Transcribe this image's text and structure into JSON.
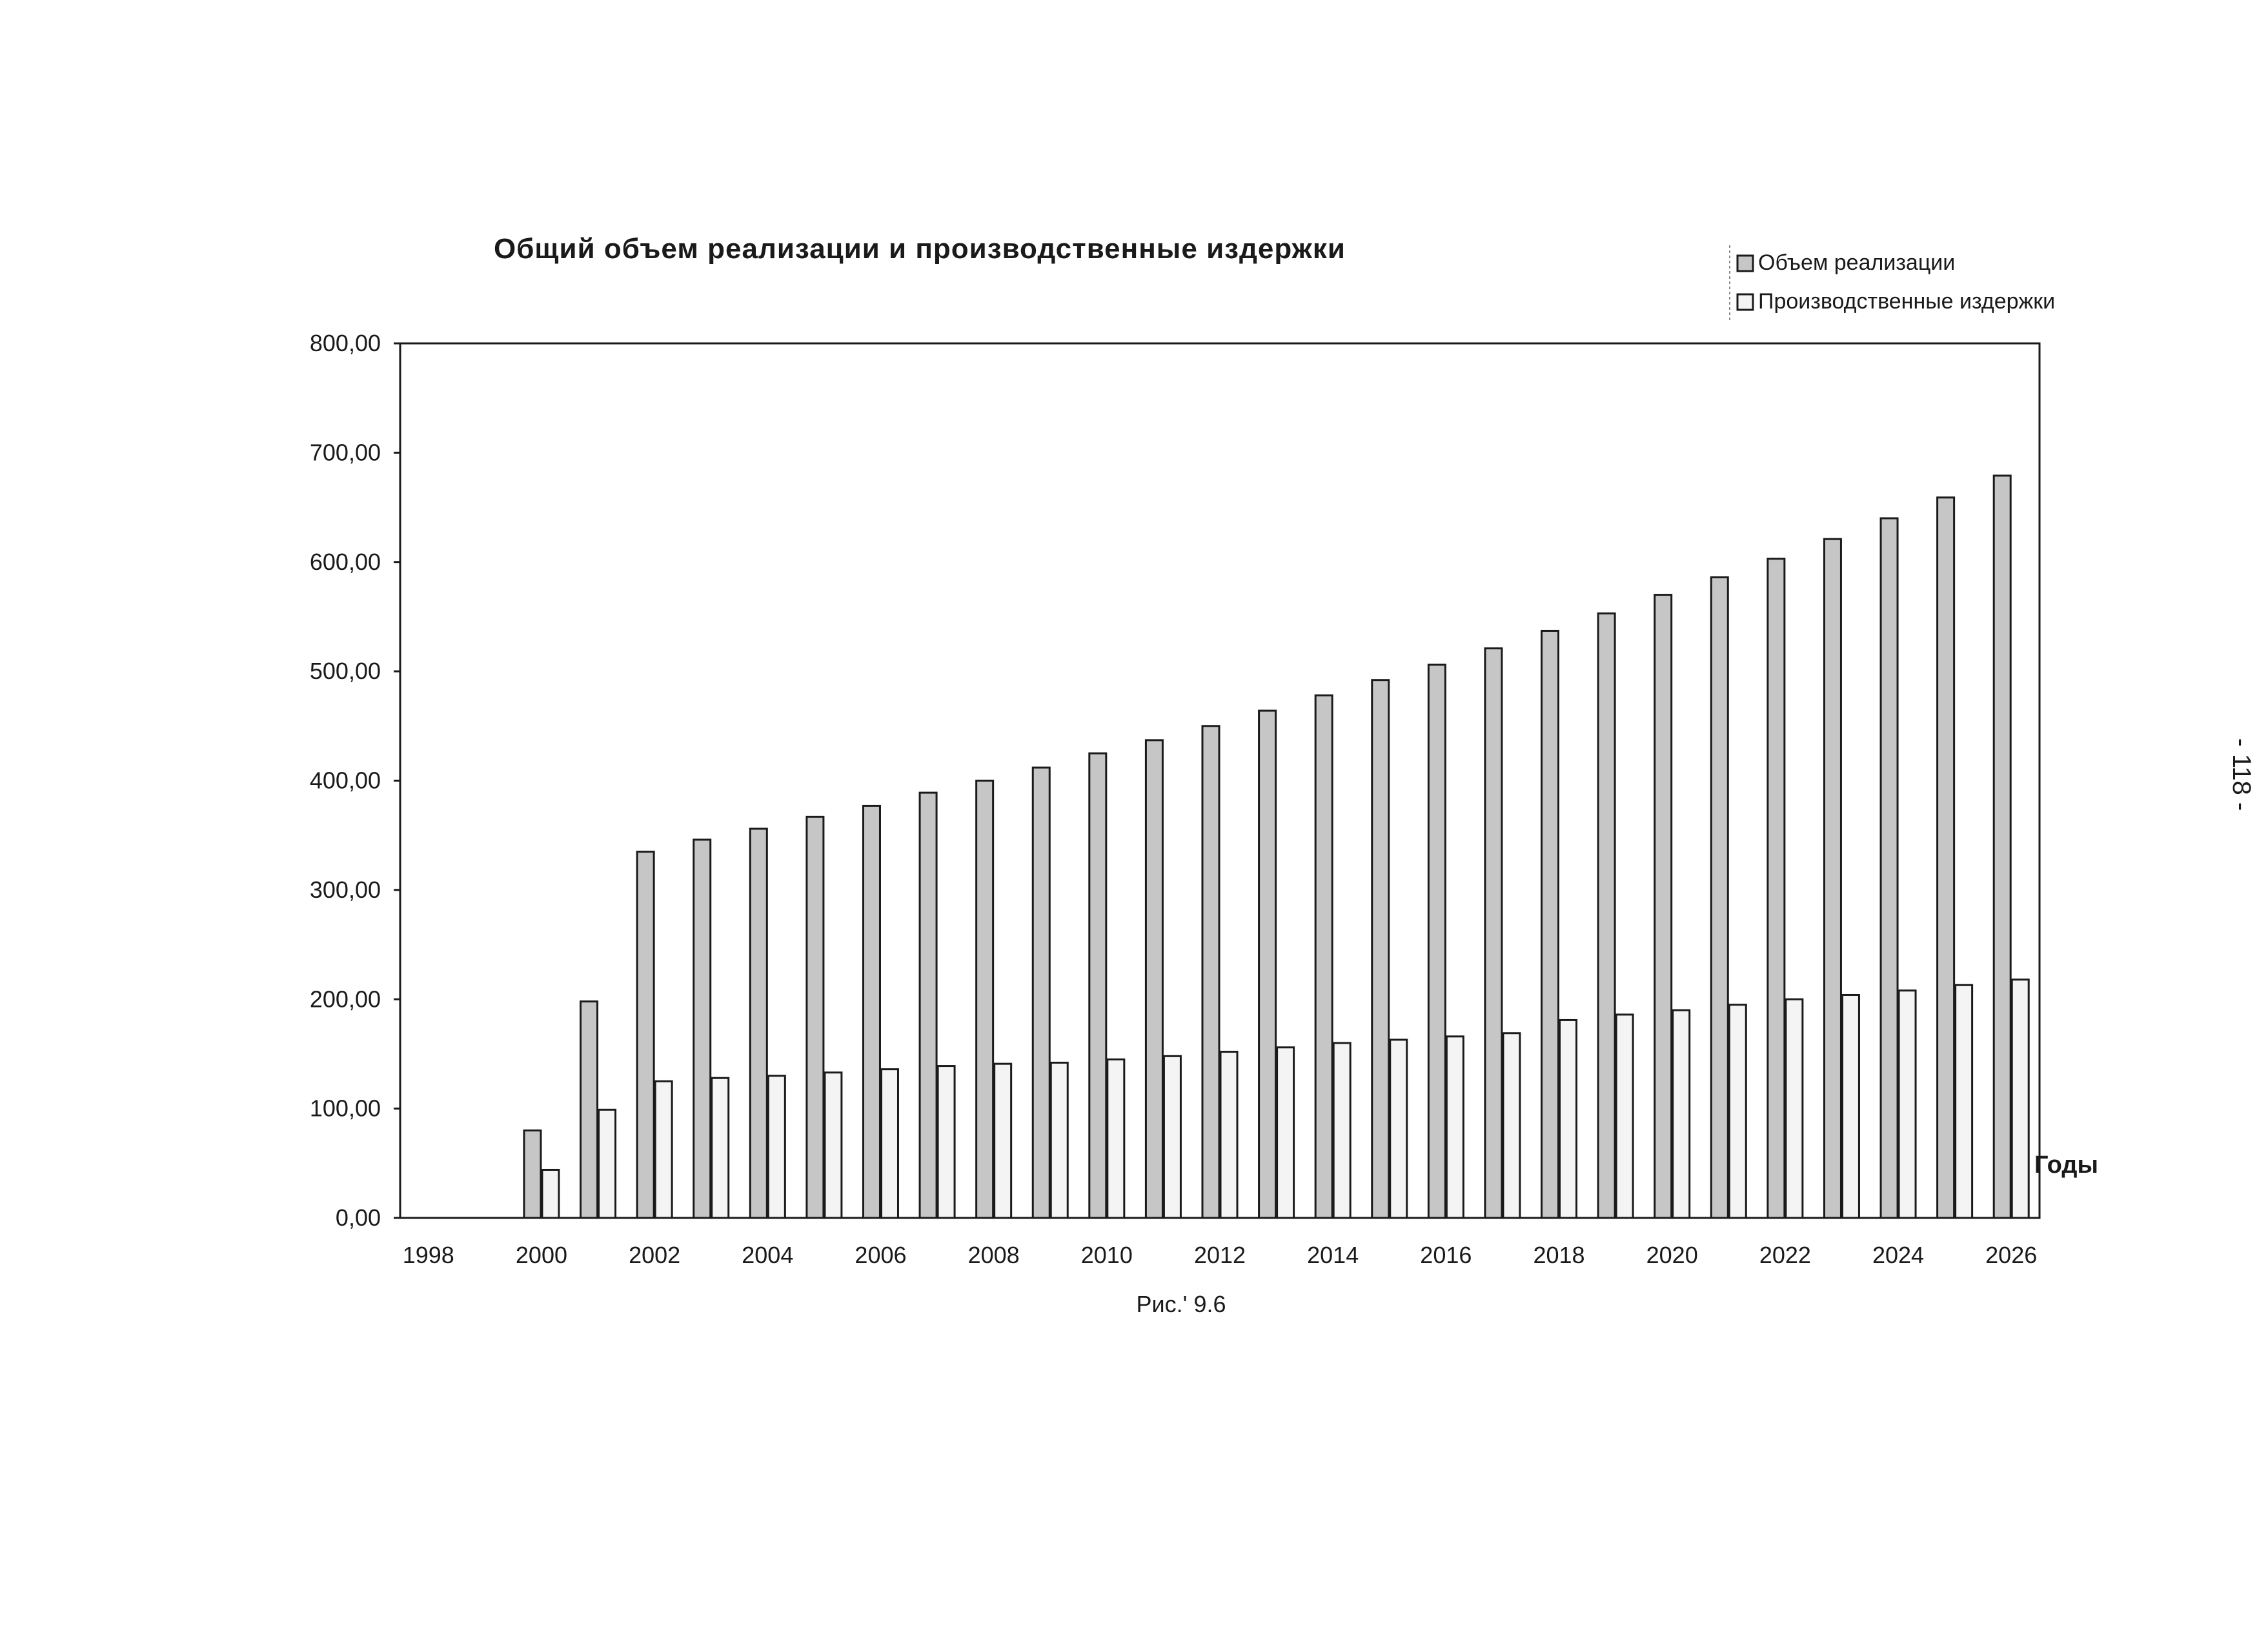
{
  "figure_caption": "Рис.' 9.6",
  "page_number": "- 118 -",
  "colors": {
    "sales_fill": "#c6c6c6",
    "costs_fill": "#f4f4f4",
    "stroke": "#1a1a1a"
  },
  "chart_data": {
    "type": "bar",
    "title": "Общий объем реализации и производственные издержки",
    "xlabel": "Годы",
    "ylabel": "",
    "ylim": [
      0,
      800
    ],
    "yticks": [
      "0,00",
      "100,00",
      "200,00",
      "300,00",
      "400,00",
      "500,00",
      "600,00",
      "700,00",
      "800,00"
    ],
    "xtick_labels": [
      "1998",
      "2000",
      "2002",
      "2004",
      "2006",
      "2008",
      "2010",
      "2012",
      "2014",
      "2016",
      "2018",
      "2020",
      "2022",
      "2024",
      "2026"
    ],
    "legend_position": "top-right",
    "grid": false,
    "categories": [
      1998,
      1999,
      2000,
      2001,
      2002,
      2003,
      2004,
      2005,
      2006,
      2007,
      2008,
      2009,
      2010,
      2011,
      2012,
      2013,
      2014,
      2015,
      2016,
      2017,
      2018,
      2019,
      2020,
      2021,
      2022,
      2023,
      2024,
      2025,
      2026
    ],
    "series": [
      {
        "name": "Объем реализации",
        "values": [
          0,
          0,
          80,
          198,
          335,
          346,
          356,
          367,
          377,
          389,
          400,
          412,
          425,
          437,
          450,
          464,
          478,
          492,
          506,
          521,
          537,
          553,
          570,
          586,
          603,
          621,
          640,
          659,
          679
        ]
      },
      {
        "name": "Производственные издержки",
        "values": [
          0,
          0,
          44,
          99,
          125,
          128,
          130,
          133,
          136,
          139,
          141,
          142,
          145,
          148,
          152,
          156,
          160,
          163,
          166,
          169,
          181,
          186,
          190,
          195,
          200,
          204,
          208,
          213,
          218
        ]
      }
    ]
  }
}
